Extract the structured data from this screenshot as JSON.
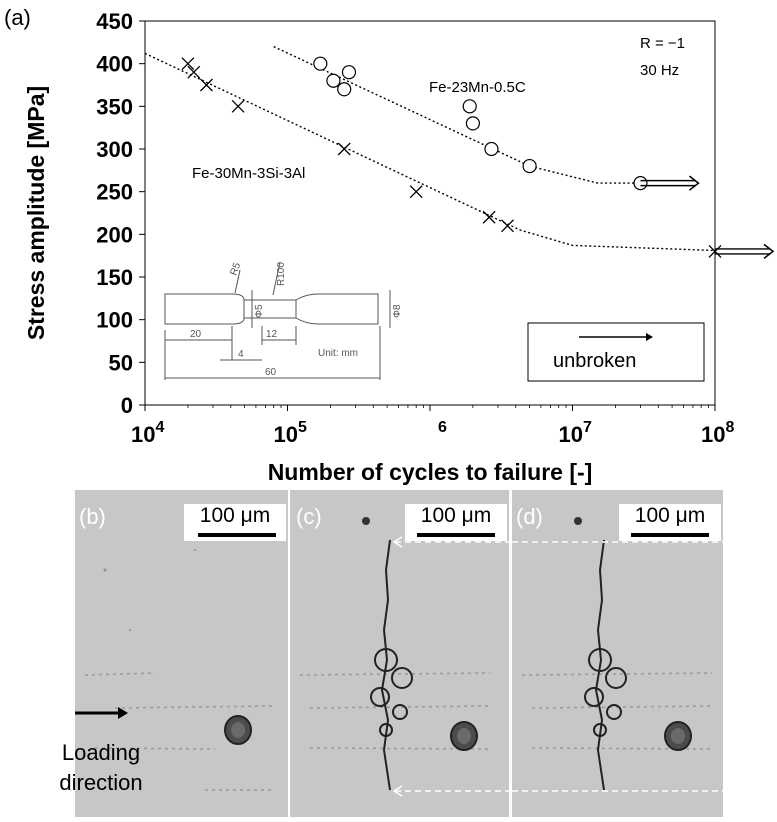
{
  "panel_labels": {
    "a": "(a)",
    "b": "(b)",
    "c": "(c)",
    "d": "(d)"
  },
  "chart_data": {
    "type": "scatter",
    "xlabel": "Number of cycles to failure [-]",
    "ylabel": "Stress amplitude [MPa]",
    "xscale": "log",
    "xlim": [
      10000,
      100000000
    ],
    "ylim": [
      0,
      450
    ],
    "x_tick_labels": [
      {
        "base": "10",
        "exp": "4"
      },
      {
        "base": "10",
        "exp": "5"
      },
      {
        "base": "",
        "exp": "6"
      },
      {
        "base": "10",
        "exp": "7"
      },
      {
        "base": "10",
        "exp": "8"
      }
    ],
    "y_tick_labels": [
      "0",
      "50",
      "100",
      "150",
      "200",
      "250",
      "300",
      "350",
      "400",
      "450"
    ],
    "y_ticks": [
      0,
      50,
      100,
      150,
      200,
      250,
      300,
      350,
      400,
      450
    ],
    "grid": false,
    "conditions": [
      "R = −1",
      "30 Hz"
    ],
    "series": [
      {
        "name": "Fe-23Mn-0.5C",
        "marker": "circle",
        "points": [
          {
            "x": 170000,
            "y": 400
          },
          {
            "x": 210000,
            "y": 380
          },
          {
            "x": 250000,
            "y": 370
          },
          {
            "x": 270000,
            "y": 390
          },
          {
            "x": 1900000,
            "y": 350
          },
          {
            "x": 2000000,
            "y": 330
          },
          {
            "x": 2700000,
            "y": 300
          },
          {
            "x": 5000000,
            "y": 280
          }
        ],
        "runouts": [
          {
            "x": 30000000,
            "y": 260
          }
        ],
        "trend": [
          [
            80000,
            420
          ],
          [
            5000000,
            280
          ],
          [
            15000000,
            260
          ],
          [
            30000000,
            260
          ]
        ]
      },
      {
        "name": "Fe-30Mn-3Si-3Al",
        "marker": "x",
        "points": [
          {
            "x": 20000,
            "y": 400
          },
          {
            "x": 22000,
            "y": 390
          },
          {
            "x": 27000,
            "y": 375
          },
          {
            "x": 45000,
            "y": 350
          },
          {
            "x": 250000,
            "y": 300
          },
          {
            "x": 800000,
            "y": 250
          },
          {
            "x": 2600000,
            "y": 220
          },
          {
            "x": 3500000,
            "y": 210
          }
        ],
        "runouts": [
          {
            "x": 100000000,
            "y": 180
          }
        ],
        "trend": [
          [
            10000,
            412
          ],
          [
            4300000,
            205
          ],
          [
            10000000,
            187
          ],
          [
            100000000,
            181
          ]
        ]
      }
    ],
    "legend_box": {
      "label": "unbroken",
      "placement": "bottom-right"
    }
  },
  "inset_drawing": {
    "radius_labels": [
      "R5",
      "R100"
    ],
    "diameter_labels": [
      "Φ5",
      "Φ8"
    ],
    "dimension_labels": [
      "20",
      "12",
      "4",
      "60"
    ],
    "unit": "Unit: mm"
  },
  "micrographs": [
    {
      "label": "(b)",
      "scale": "100 μm",
      "caption": [
        "Loading",
        "direction"
      ]
    },
    {
      "label": "(c)",
      "scale": "100 μm"
    },
    {
      "label": "(d)",
      "scale": "100 μm"
    }
  ]
}
